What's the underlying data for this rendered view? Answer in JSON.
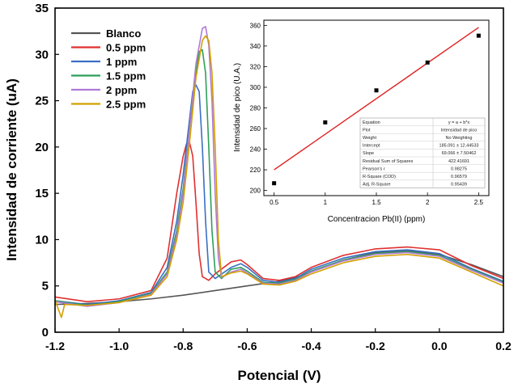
{
  "chart_data": [
    {
      "type": "line",
      "xlabel": "Potencial (V)",
      "ylabel": "Intensidad de corriente (uA)",
      "xlim": [
        -1.2,
        0.2
      ],
      "ylim": [
        0,
        35
      ],
      "xticks": [
        -1.2,
        -1.0,
        -0.8,
        -0.6,
        -0.4,
        -0.2,
        0.0,
        0.2
      ],
      "xtick_labels": [
        "-1.2",
        "-1.0",
        "-0.8",
        "-0.6",
        "-0.4",
        "-0.2",
        "0.0",
        "0.2"
      ],
      "yticks": [
        0,
        5,
        10,
        15,
        20,
        25,
        30,
        35
      ],
      "ytick_labels": [
        "0",
        "5",
        "10",
        "15",
        "20",
        "25",
        "30",
        "35"
      ],
      "legend_position": "top-left",
      "series": [
        {
          "name": "Blanco",
          "color": "#555555",
          "x": [
            -1.2,
            -1.1,
            -1.0,
            -0.9,
            -0.8,
            -0.7,
            -0.6,
            -0.5,
            -0.45,
            -0.4,
            -0.3,
            -0.2,
            -0.1,
            0.0,
            0.1,
            0.2
          ],
          "y": [
            3.0,
            3.1,
            3.3,
            3.6,
            4.0,
            4.5,
            5.0,
            5.5,
            5.9,
            6.5,
            7.8,
            8.6,
            8.8,
            8.4,
            7.3,
            6.0
          ]
        },
        {
          "name": "0.5 ppm",
          "color": "#e03030",
          "x": [
            -1.2,
            -1.1,
            -1.0,
            -0.9,
            -0.85,
            -0.82,
            -0.8,
            -0.79,
            -0.78,
            -0.77,
            -0.76,
            -0.75,
            -0.74,
            -0.72,
            -0.7,
            -0.65,
            -0.62,
            -0.6,
            -0.55,
            -0.5,
            -0.45,
            -0.4,
            -0.3,
            -0.2,
            -0.1,
            0.0,
            0.1,
            0.2
          ],
          "y": [
            3.8,
            3.3,
            3.6,
            4.5,
            8.0,
            15.0,
            19.0,
            20.3,
            20.5,
            19.0,
            14.0,
            8.5,
            6.0,
            5.6,
            6.3,
            7.6,
            7.8,
            7.3,
            5.8,
            5.6,
            6.0,
            7.0,
            8.3,
            9.0,
            9.2,
            8.9,
            7.2,
            5.8
          ]
        },
        {
          "name": "1 ppm",
          "color": "#3a6fc4",
          "x": [
            -1.2,
            -1.1,
            -1.0,
            -0.9,
            -0.85,
            -0.82,
            -0.8,
            -0.78,
            -0.77,
            -0.76,
            -0.75,
            -0.74,
            -0.73,
            -0.72,
            -0.7,
            -0.65,
            -0.62,
            -0.6,
            -0.55,
            -0.5,
            -0.45,
            -0.4,
            -0.3,
            -0.2,
            -0.1,
            0.0,
            0.1,
            0.2
          ],
          "y": [
            3.4,
            3.0,
            3.4,
            4.3,
            7.0,
            12.0,
            17.0,
            23.0,
            26.0,
            26.7,
            26.0,
            20.0,
            12.0,
            6.5,
            5.8,
            7.0,
            7.4,
            7.0,
            5.6,
            5.4,
            5.8,
            6.8,
            8.0,
            8.7,
            8.9,
            8.5,
            6.9,
            5.5
          ]
        },
        {
          "name": "1.5 ppm",
          "color": "#2e9e5a",
          "x": [
            -1.2,
            -1.1,
            -1.0,
            -0.9,
            -0.85,
            -0.82,
            -0.8,
            -0.78,
            -0.76,
            -0.75,
            -0.74,
            -0.73,
            -0.72,
            -0.71,
            -0.7,
            -0.68,
            -0.65,
            -0.62,
            -0.6,
            -0.55,
            -0.5,
            -0.45,
            -0.4,
            -0.3,
            -0.2,
            -0.1,
            0.0,
            0.1,
            0.2
          ],
          "y": [
            3.4,
            2.9,
            3.3,
            4.2,
            6.5,
            11.0,
            15.5,
            22.0,
            28.0,
            30.3,
            30.5,
            28.0,
            20.0,
            11.0,
            6.5,
            5.8,
            6.8,
            7.0,
            6.6,
            5.4,
            5.3,
            5.7,
            6.6,
            7.8,
            8.5,
            8.7,
            8.3,
            6.8,
            5.4
          ]
        },
        {
          "name": "2 ppm",
          "color": "#b07ad6",
          "x": [
            -1.2,
            -1.1,
            -1.0,
            -0.9,
            -0.85,
            -0.82,
            -0.8,
            -0.78,
            -0.76,
            -0.74,
            -0.73,
            -0.72,
            -0.71,
            -0.7,
            -0.69,
            -0.68,
            -0.65,
            -0.62,
            -0.6,
            -0.55,
            -0.5,
            -0.45,
            -0.4,
            -0.3,
            -0.2,
            -0.1,
            0.0,
            0.1,
            0.2
          ],
          "y": [
            3.3,
            2.8,
            3.2,
            4.1,
            6.3,
            10.5,
            15.0,
            22.0,
            29.0,
            32.8,
            33.0,
            31.0,
            25.0,
            15.0,
            8.0,
            5.9,
            6.5,
            6.8,
            6.4,
            5.3,
            5.2,
            5.6,
            6.5,
            7.7,
            8.4,
            8.6,
            8.2,
            6.7,
            5.3
          ]
        },
        {
          "name": "2.5 ppm",
          "color": "#d4a000",
          "x": [
            -1.2,
            -1.19,
            -1.18,
            -1.17,
            -1.1,
            -1.0,
            -0.9,
            -0.85,
            -0.82,
            -0.8,
            -0.78,
            -0.76,
            -0.74,
            -0.73,
            -0.72,
            -0.71,
            -0.7,
            -0.69,
            -0.68,
            -0.65,
            -0.62,
            -0.6,
            -0.55,
            -0.5,
            -0.45,
            -0.4,
            -0.3,
            -0.2,
            -0.1,
            0.0,
            0.1,
            0.2
          ],
          "y": [
            3.5,
            2.5,
            1.6,
            3.0,
            2.9,
            3.2,
            4.0,
            6.0,
            10.0,
            14.0,
            20.5,
            27.5,
            31.5,
            32.0,
            31.5,
            28.0,
            20.0,
            10.0,
            6.0,
            6.4,
            6.6,
            6.3,
            5.2,
            5.1,
            5.5,
            6.3,
            7.5,
            8.2,
            8.4,
            8.0,
            6.5,
            5.0
          ]
        }
      ]
    },
    {
      "type": "scatter",
      "position": "top-right inset",
      "xlabel": "Concentracion Pb(II) (ppm)",
      "ylabel": "Intensidad de pico (U.A.)",
      "xlim": [
        0.4,
        2.6
      ],
      "ylim": [
        195,
        365
      ],
      "xticks": [
        0.5,
        1.0,
        1.5,
        2.0,
        2.5
      ],
      "xtick_labels": [
        "0.5",
        "1",
        "1.5",
        "2",
        "2.5"
      ],
      "yticks": [
        200,
        220,
        240,
        260,
        280,
        300,
        320,
        340,
        360
      ],
      "ytick_labels": [
        "200",
        "220",
        "240",
        "260",
        "280",
        "300",
        "320",
        "340",
        "360"
      ],
      "points": {
        "x": [
          0.5,
          1.0,
          1.5,
          2.0,
          2.5
        ],
        "y": [
          207,
          266,
          297,
          324,
          350
        ],
        "color": "#000000"
      },
      "fit_line": {
        "x": [
          0.5,
          2.5
        ],
        "y": [
          220,
          358
        ],
        "color": "#e02020"
      },
      "fit_table": [
        [
          "Equation",
          "y = a + b*x"
        ],
        [
          "Plot",
          "Intensidad de pico"
        ],
        [
          "Weight",
          "No Weighting"
        ],
        [
          "Intercept",
          "185.091 ± 12.44533"
        ],
        [
          "Slope",
          "69.066 ± 7.50462"
        ],
        [
          "Residual Sum of Squares",
          "422.41691"
        ],
        [
          "Pearson's r",
          "0.98275"
        ],
        [
          "R-Square (COD)",
          "0.96579"
        ],
        [
          "Adj. R-Square",
          "0.95439"
        ]
      ]
    }
  ],
  "style": {
    "background": "#ffffff",
    "axis_color": "#000000"
  }
}
